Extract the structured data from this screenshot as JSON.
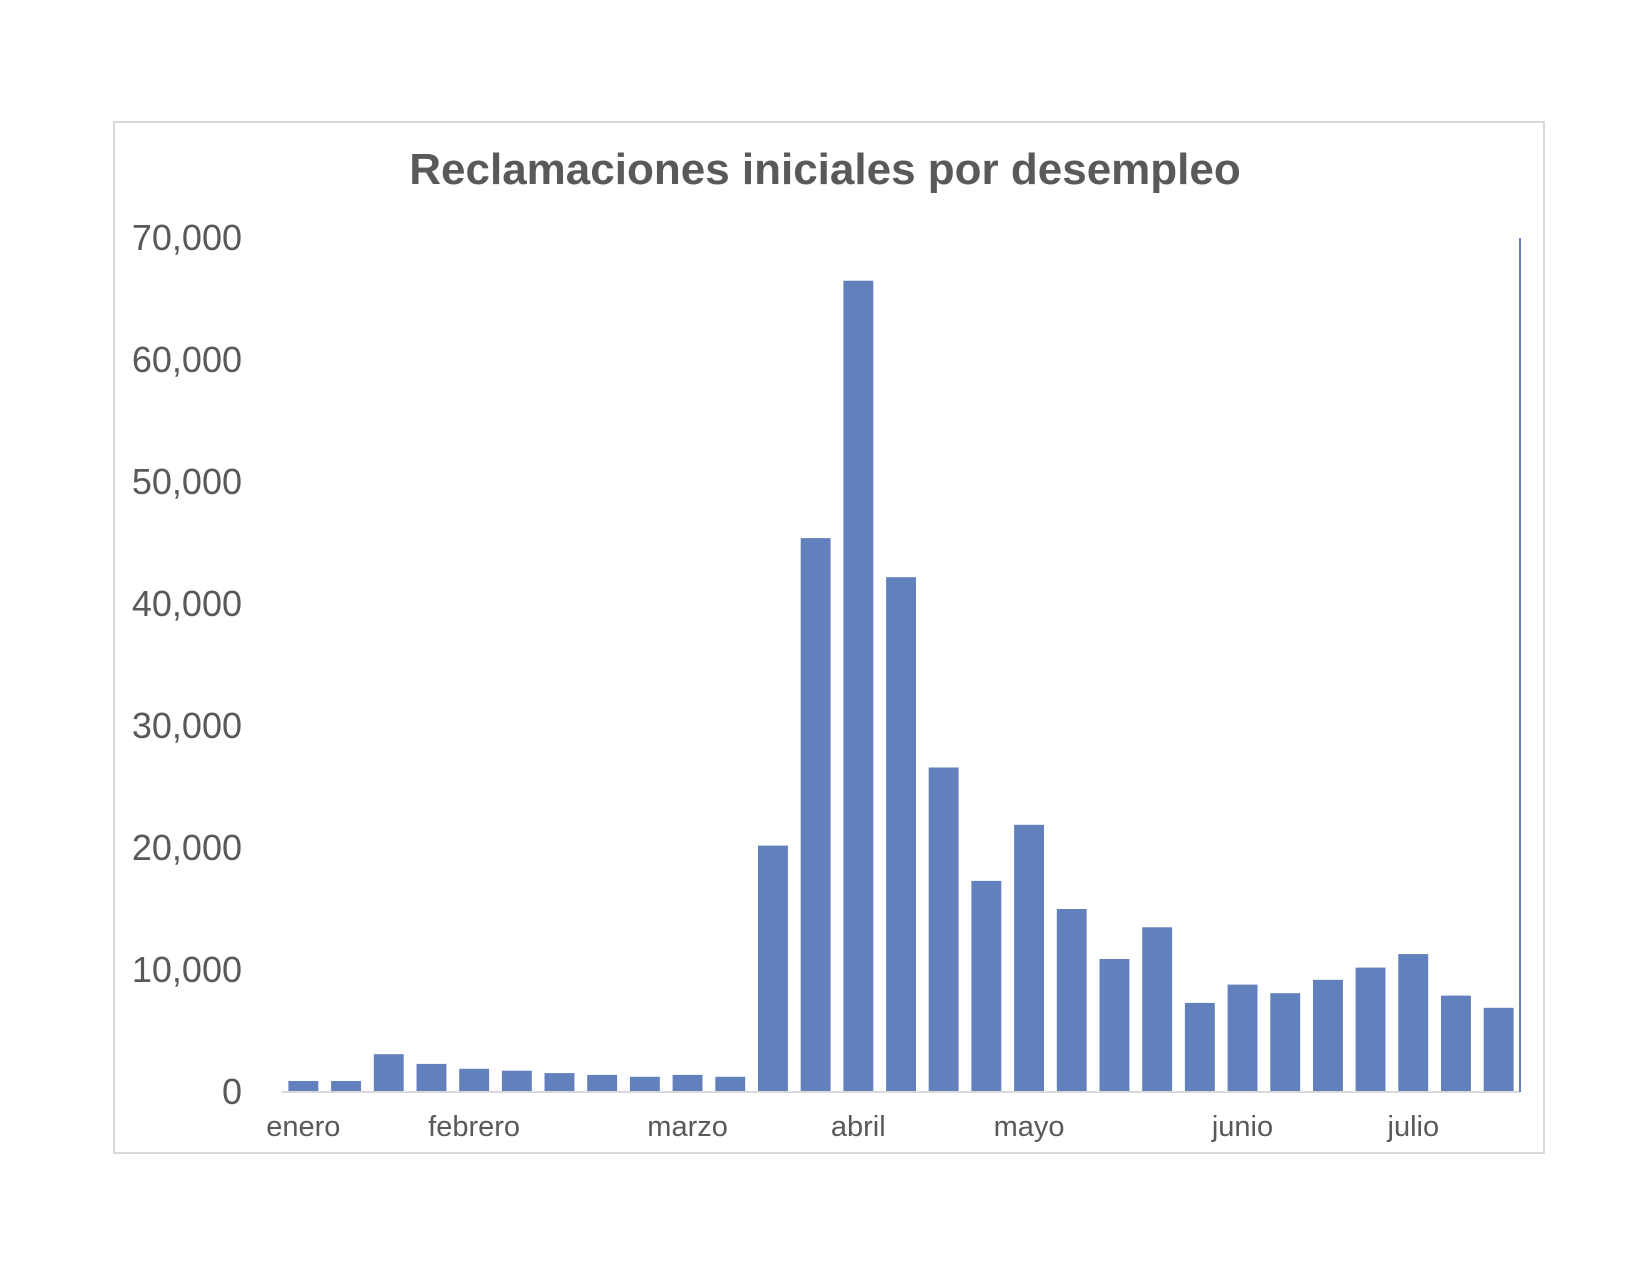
{
  "chart_data": {
    "type": "bar",
    "title": "Reclamaciones iniciales por desempleo",
    "xlabel": "",
    "ylabel": "",
    "ylim": [
      0,
      70000
    ],
    "yticks": [
      "0",
      "10,000",
      "20,000",
      "30,000",
      "40,000",
      "50,000",
      "60,000",
      "70,000"
    ],
    "month_labels": [
      {
        "label": "enero",
        "at_bar": 0.5
      },
      {
        "label": "febrero",
        "at_bar": 4.5
      },
      {
        "label": "marzo",
        "at_bar": 9.5
      },
      {
        "label": "abril",
        "at_bar": 13.5
      },
      {
        "label": "mayo",
        "at_bar": 17.5
      },
      {
        "label": "junio",
        "at_bar": 22.5
      },
      {
        "label": "julio",
        "at_bar": 26.5
      }
    ],
    "values": [
      900,
      900,
      3100,
      2300,
      1900,
      1750,
      1550,
      1400,
      1250,
      1400,
      1250,
      20200,
      45400,
      66500,
      42200,
      26600,
      17300,
      21900,
      15000,
      10900,
      13500,
      7300,
      8800,
      8100,
      9200,
      10200,
      11300,
      7900,
      6900
    ],
    "bar_color": "#6280bb",
    "grid": false,
    "legend": "none"
  }
}
